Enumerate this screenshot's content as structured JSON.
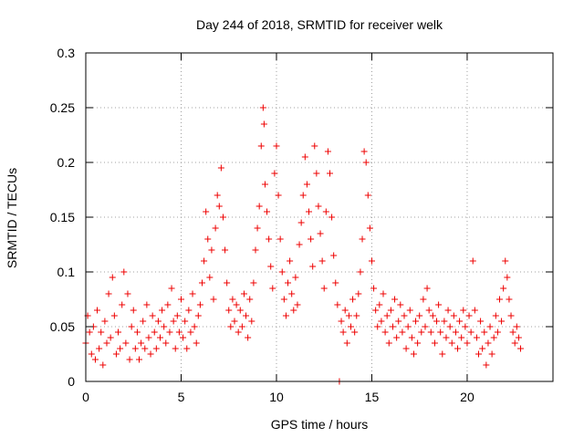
{
  "chart_data": {
    "type": "scatter",
    "title": "Day 244 of 2018, SRMTID for receiver welk",
    "xlabel": "GPS time / hours",
    "ylabel": "SRMTID / TECUs",
    "xlim": [
      0,
      24.5
    ],
    "ylim": [
      0,
      0.3
    ],
    "xticks": [
      0,
      5,
      10,
      15,
      20
    ],
    "xtick_labels": [
      "0",
      "5",
      "10",
      "15",
      "20"
    ],
    "yticks": [
      0,
      0.05,
      0.1,
      0.15,
      0.2,
      0.25,
      0.3
    ],
    "ytick_labels": [
      "0",
      "0.05",
      "0.1",
      "0.15",
      "0.2",
      "0.25",
      "0.3"
    ],
    "grid": true,
    "marker": "+",
    "series_color": "#ee0000",
    "series": [
      {
        "name": "SRMTID",
        "points": [
          [
            0.0,
            0.035
          ],
          [
            0.1,
            0.06
          ],
          [
            0.2,
            0.045
          ],
          [
            0.3,
            0.025
          ],
          [
            0.4,
            0.05
          ],
          [
            0.5,
            0.02
          ],
          [
            0.6,
            0.065
          ],
          [
            0.7,
            0.03
          ],
          [
            0.8,
            0.045
          ],
          [
            0.9,
            0.015
          ],
          [
            1.0,
            0.055
          ],
          [
            1.1,
            0.035
          ],
          [
            1.2,
            0.08
          ],
          [
            1.3,
            0.04
          ],
          [
            1.4,
            0.095
          ],
          [
            1.5,
            0.06
          ],
          [
            1.6,
            0.025
          ],
          [
            1.7,
            0.045
          ],
          [
            1.8,
            0.03
          ],
          [
            1.9,
            0.07
          ],
          [
            2.0,
            0.1
          ],
          [
            2.1,
            0.035
          ],
          [
            2.2,
            0.08
          ],
          [
            2.3,
            0.02
          ],
          [
            2.4,
            0.05
          ],
          [
            2.5,
            0.065
          ],
          [
            2.6,
            0.03
          ],
          [
            2.7,
            0.045
          ],
          [
            2.8,
            0.02
          ],
          [
            2.9,
            0.035
          ],
          [
            3.0,
            0.055
          ],
          [
            3.1,
            0.03
          ],
          [
            3.2,
            0.07
          ],
          [
            3.3,
            0.04
          ],
          [
            3.4,
            0.025
          ],
          [
            3.5,
            0.06
          ],
          [
            3.6,
            0.045
          ],
          [
            3.7,
            0.03
          ],
          [
            3.8,
            0.055
          ],
          [
            3.9,
            0.04
          ],
          [
            4.0,
            0.065
          ],
          [
            4.1,
            0.05
          ],
          [
            4.2,
            0.035
          ],
          [
            4.3,
            0.07
          ],
          [
            4.4,
            0.045
          ],
          [
            4.5,
            0.085
          ],
          [
            4.6,
            0.055
          ],
          [
            4.7,
            0.03
          ],
          [
            4.8,
            0.06
          ],
          [
            4.9,
            0.045
          ],
          [
            5.0,
            0.075
          ],
          [
            5.1,
            0.04
          ],
          [
            5.2,
            0.055
          ],
          [
            5.3,
            0.03
          ],
          [
            5.4,
            0.065
          ],
          [
            5.5,
            0.045
          ],
          [
            5.6,
            0.08
          ],
          [
            5.7,
            0.05
          ],
          [
            5.8,
            0.035
          ],
          [
            5.9,
            0.06
          ],
          [
            6.0,
            0.07
          ],
          [
            6.1,
            0.09
          ],
          [
            6.2,
            0.11
          ],
          [
            6.3,
            0.155
          ],
          [
            6.4,
            0.13
          ],
          [
            6.5,
            0.095
          ],
          [
            6.6,
            0.12
          ],
          [
            6.7,
            0.075
          ],
          [
            6.8,
            0.14
          ],
          [
            6.9,
            0.17
          ],
          [
            7.0,
            0.16
          ],
          [
            7.1,
            0.195
          ],
          [
            7.2,
            0.15
          ],
          [
            7.3,
            0.12
          ],
          [
            7.4,
            0.09
          ],
          [
            7.5,
            0.065
          ],
          [
            7.6,
            0.05
          ],
          [
            7.7,
            0.075
          ],
          [
            7.8,
            0.055
          ],
          [
            7.9,
            0.07
          ],
          [
            8.0,
            0.045
          ],
          [
            8.1,
            0.065
          ],
          [
            8.2,
            0.05
          ],
          [
            8.3,
            0.08
          ],
          [
            8.4,
            0.06
          ],
          [
            8.5,
            0.04
          ],
          [
            8.6,
            0.075
          ],
          [
            8.7,
            0.055
          ],
          [
            8.8,
            0.09
          ],
          [
            8.9,
            0.12
          ],
          [
            9.0,
            0.14
          ],
          [
            9.1,
            0.16
          ],
          [
            9.2,
            0.215
          ],
          [
            9.3,
            0.25
          ],
          [
            9.35,
            0.235
          ],
          [
            9.4,
            0.18
          ],
          [
            9.5,
            0.155
          ],
          [
            9.6,
            0.13
          ],
          [
            9.7,
            0.105
          ],
          [
            9.8,
            0.085
          ],
          [
            9.9,
            0.19
          ],
          [
            10.0,
            0.215
          ],
          [
            10.1,
            0.17
          ],
          [
            10.2,
            0.13
          ],
          [
            10.3,
            0.1
          ],
          [
            10.4,
            0.075
          ],
          [
            10.5,
            0.06
          ],
          [
            10.6,
            0.09
          ],
          [
            10.7,
            0.11
          ],
          [
            10.8,
            0.08
          ],
          [
            10.9,
            0.065
          ],
          [
            11.0,
            0.095
          ],
          [
            11.1,
            0.07
          ],
          [
            11.2,
            0.125
          ],
          [
            11.3,
            0.145
          ],
          [
            11.4,
            0.17
          ],
          [
            11.5,
            0.205
          ],
          [
            11.6,
            0.18
          ],
          [
            11.7,
            0.155
          ],
          [
            11.8,
            0.13
          ],
          [
            11.9,
            0.105
          ],
          [
            12.0,
            0.215
          ],
          [
            12.1,
            0.19
          ],
          [
            12.2,
            0.16
          ],
          [
            12.3,
            0.135
          ],
          [
            12.4,
            0.11
          ],
          [
            12.5,
            0.085
          ],
          [
            12.6,
            0.155
          ],
          [
            12.7,
            0.21
          ],
          [
            12.8,
            0.19
          ],
          [
            12.9,
            0.15
          ],
          [
            13.0,
            0.115
          ],
          [
            13.1,
            0.09
          ],
          [
            13.2,
            0.07
          ],
          [
            13.3,
            0.0
          ],
          [
            13.4,
            0.055
          ],
          [
            13.5,
            0.045
          ],
          [
            13.6,
            0.065
          ],
          [
            13.7,
            0.035
          ],
          [
            13.8,
            0.06
          ],
          [
            13.9,
            0.05
          ],
          [
            14.0,
            0.075
          ],
          [
            14.1,
            0.045
          ],
          [
            14.2,
            0.06
          ],
          [
            14.3,
            0.08
          ],
          [
            14.4,
            0.1
          ],
          [
            14.5,
            0.13
          ],
          [
            14.6,
            0.21
          ],
          [
            14.7,
            0.2
          ],
          [
            14.8,
            0.17
          ],
          [
            14.9,
            0.14
          ],
          [
            15.0,
            0.11
          ],
          [
            15.1,
            0.085
          ],
          [
            15.2,
            0.065
          ],
          [
            15.3,
            0.05
          ],
          [
            15.4,
            0.07
          ],
          [
            15.5,
            0.055
          ],
          [
            15.6,
            0.08
          ],
          [
            15.7,
            0.045
          ],
          [
            15.8,
            0.06
          ],
          [
            15.9,
            0.035
          ],
          [
            16.0,
            0.065
          ],
          [
            16.1,
            0.05
          ],
          [
            16.2,
            0.075
          ],
          [
            16.3,
            0.04
          ],
          [
            16.4,
            0.055
          ],
          [
            16.5,
            0.07
          ],
          [
            16.6,
            0.045
          ],
          [
            16.7,
            0.06
          ],
          [
            16.8,
            0.03
          ],
          [
            16.9,
            0.05
          ],
          [
            17.0,
            0.065
          ],
          [
            17.1,
            0.04
          ],
          [
            17.2,
            0.025
          ],
          [
            17.3,
            0.055
          ],
          [
            17.4,
            0.035
          ],
          [
            17.5,
            0.06
          ],
          [
            17.6,
            0.045
          ],
          [
            17.7,
            0.075
          ],
          [
            17.8,
            0.05
          ],
          [
            17.9,
            0.085
          ],
          [
            18.0,
            0.065
          ],
          [
            18.1,
            0.045
          ],
          [
            18.2,
            0.06
          ],
          [
            18.3,
            0.035
          ],
          [
            18.4,
            0.055
          ],
          [
            18.5,
            0.07
          ],
          [
            18.6,
            0.045
          ],
          [
            18.7,
            0.025
          ],
          [
            18.8,
            0.055
          ],
          [
            18.9,
            0.04
          ],
          [
            19.0,
            0.065
          ],
          [
            19.1,
            0.05
          ],
          [
            19.2,
            0.035
          ],
          [
            19.3,
            0.06
          ],
          [
            19.4,
            0.045
          ],
          [
            19.5,
            0.03
          ],
          [
            19.6,
            0.055
          ],
          [
            19.7,
            0.04
          ],
          [
            19.8,
            0.065
          ],
          [
            19.9,
            0.05
          ],
          [
            20.0,
            0.035
          ],
          [
            20.1,
            0.06
          ],
          [
            20.2,
            0.045
          ],
          [
            20.3,
            0.11
          ],
          [
            20.4,
            0.065
          ],
          [
            20.5,
            0.04
          ],
          [
            20.6,
            0.025
          ],
          [
            20.7,
            0.055
          ],
          [
            20.8,
            0.03
          ],
          [
            20.9,
            0.045
          ],
          [
            21.0,
            0.015
          ],
          [
            21.1,
            0.035
          ],
          [
            21.2,
            0.05
          ],
          [
            21.3,
            0.025
          ],
          [
            21.4,
            0.04
          ],
          [
            21.5,
            0.06
          ],
          [
            21.6,
            0.045
          ],
          [
            21.7,
            0.075
          ],
          [
            21.8,
            0.055
          ],
          [
            21.9,
            0.085
          ],
          [
            22.0,
            0.11
          ],
          [
            22.1,
            0.095
          ],
          [
            22.2,
            0.075
          ],
          [
            22.3,
            0.06
          ],
          [
            22.4,
            0.045
          ],
          [
            22.5,
            0.035
          ],
          [
            22.6,
            0.05
          ],
          [
            22.7,
            0.04
          ],
          [
            22.8,
            0.03
          ]
        ]
      }
    ]
  }
}
